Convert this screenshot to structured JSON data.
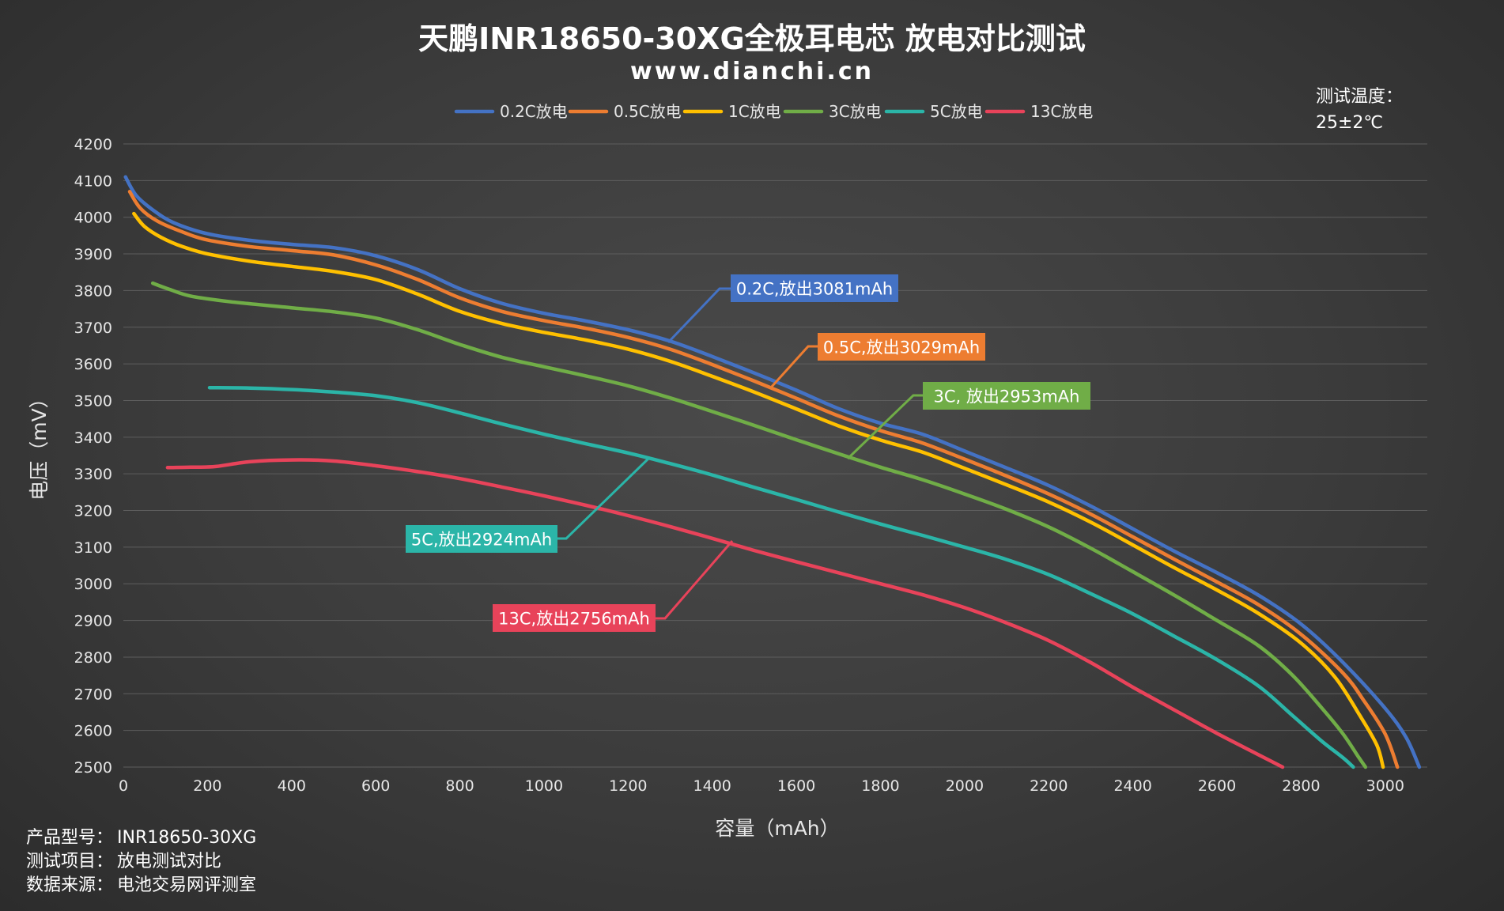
{
  "chart_data": {
    "type": "line",
    "title": "天鹏INR18650-30XG全极耳电芯 放电对比测试",
    "subtitle": "www.dianchi.cn",
    "xlabel": "容量（mAh）",
    "ylabel": "电压（mV）",
    "xlim": [
      0,
      3100
    ],
    "ylim": [
      2500,
      4200
    ],
    "xticks": [
      "0",
      "200",
      "400",
      "600",
      "800",
      "1000",
      "1200",
      "1400",
      "1600",
      "1800",
      "2000",
      "2200",
      "2400",
      "2600",
      "2800",
      "3000"
    ],
    "yticks": [
      "2500",
      "2600",
      "2700",
      "2800",
      "2900",
      "3000",
      "3100",
      "3200",
      "3300",
      "3400",
      "3500",
      "3600",
      "3700",
      "3800",
      "3900",
      "4000",
      "4100",
      "4200"
    ],
    "grid": "horizontal",
    "legend_position": "top",
    "temperature_note": {
      "label": "测试温度：",
      "value": "25±2℃"
    },
    "info": [
      {
        "label": "产品型号：",
        "value": "INR18650-30XG"
      },
      {
        "label": "测试项目：",
        "value": "放电测试对比"
      },
      {
        "label": "数据来源：",
        "value": "电池交易网评测室"
      }
    ],
    "series": [
      {
        "name": "0.2C放电",
        "color": "#4472C4",
        "callout": "0.2C,放出3081mAh",
        "points": [
          [
            5,
            4110
          ],
          [
            30,
            4060
          ],
          [
            70,
            4020
          ],
          [
            120,
            3985
          ],
          [
            200,
            3955
          ],
          [
            300,
            3937
          ],
          [
            400,
            3926
          ],
          [
            500,
            3917
          ],
          [
            600,
            3895
          ],
          [
            700,
            3857
          ],
          [
            800,
            3805
          ],
          [
            900,
            3765
          ],
          [
            1000,
            3738
          ],
          [
            1100,
            3717
          ],
          [
            1200,
            3693
          ],
          [
            1300,
            3662
          ],
          [
            1400,
            3620
          ],
          [
            1500,
            3575
          ],
          [
            1600,
            3528
          ],
          [
            1700,
            3478
          ],
          [
            1800,
            3438
          ],
          [
            1900,
            3408
          ],
          [
            2000,
            3362
          ],
          [
            2100,
            3316
          ],
          [
            2200,
            3268
          ],
          [
            2300,
            3212
          ],
          [
            2400,
            3150
          ],
          [
            2500,
            3088
          ],
          [
            2600,
            3030
          ],
          [
            2700,
            2968
          ],
          [
            2800,
            2890
          ],
          [
            2900,
            2785
          ],
          [
            3000,
            2660
          ],
          [
            3050,
            2580
          ],
          [
            3081,
            2500
          ]
        ]
      },
      {
        "name": "0.5C放电",
        "color": "#ED7D31",
        "callout": "0.5C,放出3029mAh",
        "points": [
          [
            15,
            4070
          ],
          [
            40,
            4025
          ],
          [
            80,
            3990
          ],
          [
            140,
            3960
          ],
          [
            200,
            3938
          ],
          [
            300,
            3920
          ],
          [
            400,
            3909
          ],
          [
            500,
            3897
          ],
          [
            600,
            3870
          ],
          [
            700,
            3830
          ],
          [
            800,
            3780
          ],
          [
            900,
            3743
          ],
          [
            1000,
            3718
          ],
          [
            1100,
            3697
          ],
          [
            1200,
            3672
          ],
          [
            1300,
            3640
          ],
          [
            1400,
            3598
          ],
          [
            1500,
            3553
          ],
          [
            1600,
            3506
          ],
          [
            1700,
            3458
          ],
          [
            1800,
            3418
          ],
          [
            1900,
            3384
          ],
          [
            2000,
            3340
          ],
          [
            2100,
            3294
          ],
          [
            2200,
            3245
          ],
          [
            2300,
            3190
          ],
          [
            2400,
            3128
          ],
          [
            2500,
            3066
          ],
          [
            2600,
            3005
          ],
          [
            2700,
            2942
          ],
          [
            2800,
            2862
          ],
          [
            2900,
            2756
          ],
          [
            2950,
            2680
          ],
          [
            3000,
            2590
          ],
          [
            3029,
            2500
          ]
        ]
      },
      {
        "name": "1C放电",
        "color": "#FFC000",
        "callout": "",
        "points": [
          [
            25,
            4010
          ],
          [
            50,
            3975
          ],
          [
            90,
            3945
          ],
          [
            140,
            3920
          ],
          [
            200,
            3900
          ],
          [
            300,
            3880
          ],
          [
            400,
            3866
          ],
          [
            500,
            3852
          ],
          [
            600,
            3830
          ],
          [
            700,
            3790
          ],
          [
            800,
            3743
          ],
          [
            900,
            3710
          ],
          [
            1000,
            3686
          ],
          [
            1100,
            3665
          ],
          [
            1200,
            3640
          ],
          [
            1300,
            3607
          ],
          [
            1400,
            3566
          ],
          [
            1500,
            3523
          ],
          [
            1600,
            3477
          ],
          [
            1700,
            3431
          ],
          [
            1800,
            3392
          ],
          [
            1900,
            3359
          ],
          [
            2000,
            3315
          ],
          [
            2100,
            3270
          ],
          [
            2200,
            3223
          ],
          [
            2300,
            3168
          ],
          [
            2400,
            3106
          ],
          [
            2500,
            3043
          ],
          [
            2600,
            2983
          ],
          [
            2700,
            2918
          ],
          [
            2800,
            2838
          ],
          [
            2880,
            2746
          ],
          [
            2940,
            2640
          ],
          [
            2980,
            2560
          ],
          [
            2995,
            2500
          ]
        ]
      },
      {
        "name": "3C放电",
        "color": "#70AD47",
        "callout": "3C, 放出2953mAh",
        "points": [
          [
            70,
            3820
          ],
          [
            110,
            3803
          ],
          [
            160,
            3785
          ],
          [
            250,
            3770
          ],
          [
            400,
            3753
          ],
          [
            500,
            3742
          ],
          [
            600,
            3725
          ],
          [
            700,
            3693
          ],
          [
            800,
            3653
          ],
          [
            900,
            3618
          ],
          [
            1000,
            3592
          ],
          [
            1100,
            3567
          ],
          [
            1200,
            3540
          ],
          [
            1300,
            3507
          ],
          [
            1400,
            3470
          ],
          [
            1500,
            3432
          ],
          [
            1600,
            3393
          ],
          [
            1700,
            3355
          ],
          [
            1800,
            3318
          ],
          [
            1900,
            3284
          ],
          [
            2000,
            3245
          ],
          [
            2100,
            3203
          ],
          [
            2200,
            3155
          ],
          [
            2300,
            3097
          ],
          [
            2400,
            3033
          ],
          [
            2500,
            2968
          ],
          [
            2600,
            2900
          ],
          [
            2700,
            2830
          ],
          [
            2780,
            2750
          ],
          [
            2850,
            2660
          ],
          [
            2900,
            2590
          ],
          [
            2935,
            2530
          ],
          [
            2953,
            2500
          ]
        ]
      },
      {
        "name": "5C放电",
        "color": "#2BB5A8",
        "callout": "5C,放出2924mAh",
        "points": [
          [
            205,
            3535
          ],
          [
            300,
            3534
          ],
          [
            400,
            3530
          ],
          [
            500,
            3523
          ],
          [
            600,
            3513
          ],
          [
            700,
            3494
          ],
          [
            800,
            3466
          ],
          [
            900,
            3436
          ],
          [
            1000,
            3408
          ],
          [
            1100,
            3382
          ],
          [
            1200,
            3357
          ],
          [
            1300,
            3328
          ],
          [
            1400,
            3297
          ],
          [
            1500,
            3263
          ],
          [
            1600,
            3230
          ],
          [
            1700,
            3196
          ],
          [
            1800,
            3163
          ],
          [
            1900,
            3132
          ],
          [
            2000,
            3100
          ],
          [
            2100,
            3066
          ],
          [
            2200,
            3025
          ],
          [
            2300,
            2973
          ],
          [
            2400,
            2918
          ],
          [
            2500,
            2856
          ],
          [
            2600,
            2793
          ],
          [
            2700,
            2720
          ],
          [
            2780,
            2640
          ],
          [
            2850,
            2570
          ],
          [
            2900,
            2525
          ],
          [
            2924,
            2500
          ]
        ]
      },
      {
        "name": "13C放电",
        "color": "#E8435A",
        "callout": "13C,放出2756mAh",
        "points": [
          [
            105,
            3317
          ],
          [
            160,
            3318
          ],
          [
            220,
            3320
          ],
          [
            300,
            3333
          ],
          [
            400,
            3338
          ],
          [
            500,
            3335
          ],
          [
            600,
            3322
          ],
          [
            700,
            3306
          ],
          [
            800,
            3287
          ],
          [
            900,
            3264
          ],
          [
            1000,
            3240
          ],
          [
            1100,
            3214
          ],
          [
            1200,
            3186
          ],
          [
            1300,
            3156
          ],
          [
            1400,
            3124
          ],
          [
            1500,
            3091
          ],
          [
            1600,
            3060
          ],
          [
            1700,
            3030
          ],
          [
            1800,
            3000
          ],
          [
            1900,
            2970
          ],
          [
            2000,
            2935
          ],
          [
            2100,
            2893
          ],
          [
            2200,
            2845
          ],
          [
            2300,
            2785
          ],
          [
            2400,
            2718
          ],
          [
            2500,
            2655
          ],
          [
            2600,
            2592
          ],
          [
            2700,
            2533
          ],
          [
            2756,
            2500
          ]
        ]
      }
    ]
  }
}
